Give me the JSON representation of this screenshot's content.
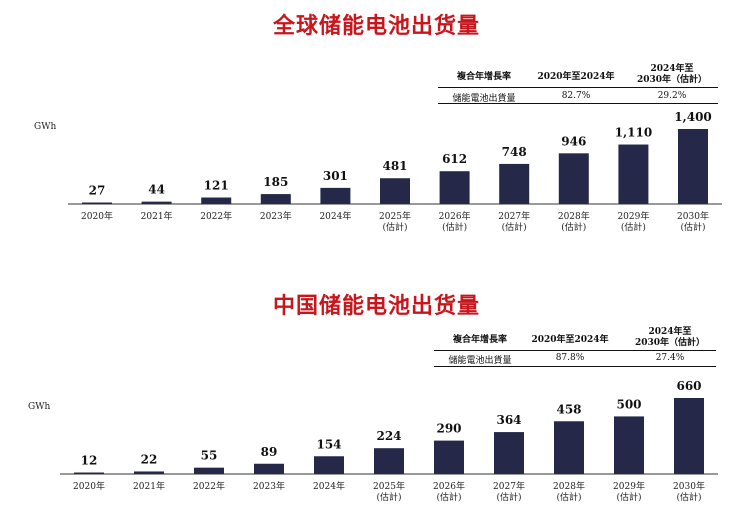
{
  "chart_data": [
    {
      "type": "bar",
      "title": "全球储能电池出货量",
      "ylabel": "GWh",
      "categories": [
        "2020年",
        "2021年",
        "2022年",
        "2023年",
        "2024年",
        "2025年",
        "2026年",
        "2027年",
        "2028年",
        "2029年",
        "2030年"
      ],
      "category_notes": [
        "",
        "",
        "",
        "",
        "",
        "(估計)",
        "(估計)",
        "(估計)",
        "(估計)",
        "(估計)",
        "(估計)"
      ],
      "values": [
        27,
        44,
        121,
        185,
        301,
        481,
        612,
        748,
        946,
        1110,
        1400
      ],
      "value_labels": [
        "27",
        "44",
        "121",
        "185",
        "301",
        "481",
        "612",
        "748",
        "946",
        "1,110",
        "1,400"
      ],
      "ylim": [
        0,
        1400
      ],
      "cagr_table": {
        "header_label": "複合年增長率",
        "col1": "2020年至2024年",
        "col2_line1": "2024年至",
        "col2_line2": "2030年（估計）",
        "row_label": "儲能電池出貨量",
        "val1": "82.7%",
        "val2": "29.2%"
      }
    },
    {
      "type": "bar",
      "title": "中国储能电池出货量",
      "ylabel": "GWh",
      "categories": [
        "2020年",
        "2021年",
        "2022年",
        "2023年",
        "2024年",
        "2025年",
        "2026年",
        "2027年",
        "2028年",
        "2029年",
        "2030年"
      ],
      "category_notes": [
        "",
        "",
        "",
        "",
        "",
        "(估計)",
        "(估計)",
        "(估計)",
        "(估計)",
        "(估計)",
        "(估計)"
      ],
      "values": [
        12,
        22,
        55,
        89,
        154,
        224,
        290,
        364,
        458,
        500,
        660
      ],
      "value_labels": [
        "12",
        "22",
        "55",
        "89",
        "154",
        "224",
        "290",
        "364",
        "458",
        "500",
        "660"
      ],
      "ylim": [
        0,
        660
      ],
      "cagr_table": {
        "header_label": "複合年增長率",
        "col1": "2020年至2024年",
        "col2_line1": "2024年至",
        "col2_line2": "2030年（估計）",
        "row_label": "儲能電池出貨量",
        "val1": "87.8%",
        "val2": "27.4%"
      }
    }
  ],
  "colors": {
    "bar": "#252848",
    "title": "#c8161d",
    "axis": "#333333"
  }
}
